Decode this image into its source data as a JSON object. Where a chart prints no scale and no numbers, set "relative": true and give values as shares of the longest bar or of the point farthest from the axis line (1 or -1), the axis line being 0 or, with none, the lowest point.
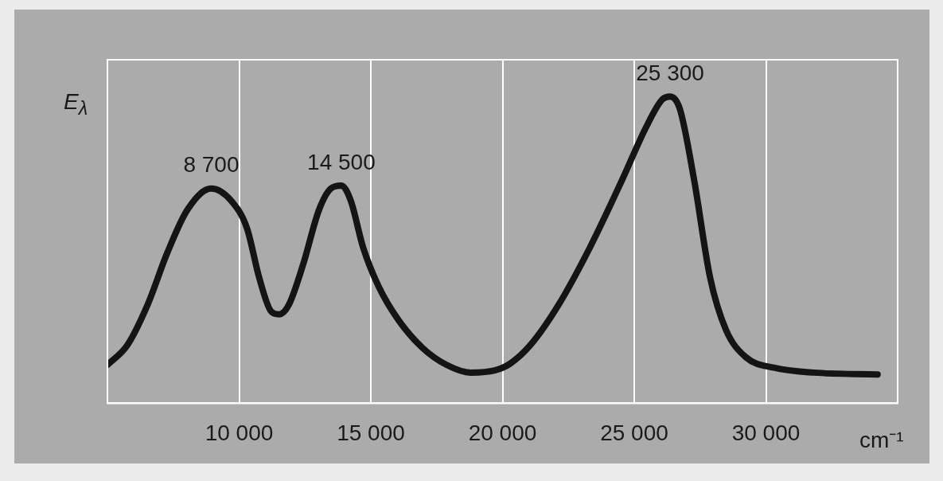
{
  "chart_data": {
    "type": "line",
    "relative": true,
    "xlabel": "cm⁻¹",
    "ylabel": "E$_{λ}$",
    "xlim": [
      5000,
      35000
    ],
    "xticks": [
      {
        "value": 10000,
        "label": "10 000"
      },
      {
        "value": 15000,
        "label": "15 000"
      },
      {
        "value": 20000,
        "label": "20 000"
      },
      {
        "value": 25000,
        "label": "25 000"
      },
      {
        "value": 30000,
        "label": "30 000"
      }
    ],
    "grid": "x",
    "marker": "none",
    "line_style": "solid",
    "annotations": [
      "8 700",
      "14 500",
      "25 300"
    ],
    "series": [
      {
        "color": "#141414",
        "x": [
          5000,
          5760,
          6520,
          7270,
          8030,
          8940,
          9700,
          10300,
          10760,
          11210,
          11520,
          11880,
          12420,
          13030,
          13480,
          13880,
          14240,
          14700,
          15300,
          16060,
          16970,
          17880,
          18790,
          19700,
          20300,
          21060,
          22120,
          23330,
          24550,
          25450,
          26060,
          26360,
          26730,
          27270,
          27880,
          28480,
          29240,
          30300,
          31820,
          34240
        ],
        "values": [
          0.125,
          0.19,
          0.32,
          0.49,
          0.63,
          0.7,
          0.66,
          0.57,
          0.41,
          0.3,
          0.29,
          0.32,
          0.45,
          0.63,
          0.7,
          0.71,
          0.66,
          0.51,
          0.38,
          0.27,
          0.18,
          0.125,
          0.1,
          0.107,
          0.13,
          0.19,
          0.32,
          0.51,
          0.73,
          0.9,
          0.99,
          1,
          0.96,
          0.73,
          0.41,
          0.24,
          0.15,
          0.116,
          0.1,
          0.094
        ]
      }
    ]
  }
}
